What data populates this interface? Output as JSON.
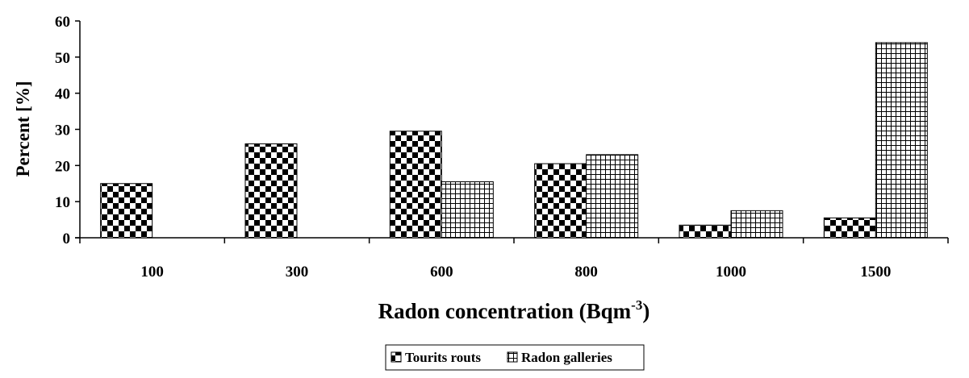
{
  "chart_data": {
    "type": "bar",
    "xlabel": "Radon concentration (Bqm",
    "xlabel_sup": "-3",
    "xlabel_close": ")",
    "ylabel": "Percent [%]",
    "categories": [
      "100",
      "300",
      "600",
      "800",
      "1000",
      "1500"
    ],
    "ylim": [
      0,
      60
    ],
    "yticks": [
      "0",
      "10",
      "20",
      "30",
      "40",
      "50",
      "60"
    ],
    "grid": false,
    "legend_position": "bottom-center",
    "series": [
      {
        "name": "Tourits routs",
        "pattern": "checker",
        "values": [
          15,
          26,
          29.5,
          20.5,
          3.5,
          5.5
        ]
      },
      {
        "name": "Radon galleries",
        "pattern": "grid",
        "values": [
          0,
          0,
          15.5,
          23,
          7.5,
          54
        ]
      }
    ]
  }
}
